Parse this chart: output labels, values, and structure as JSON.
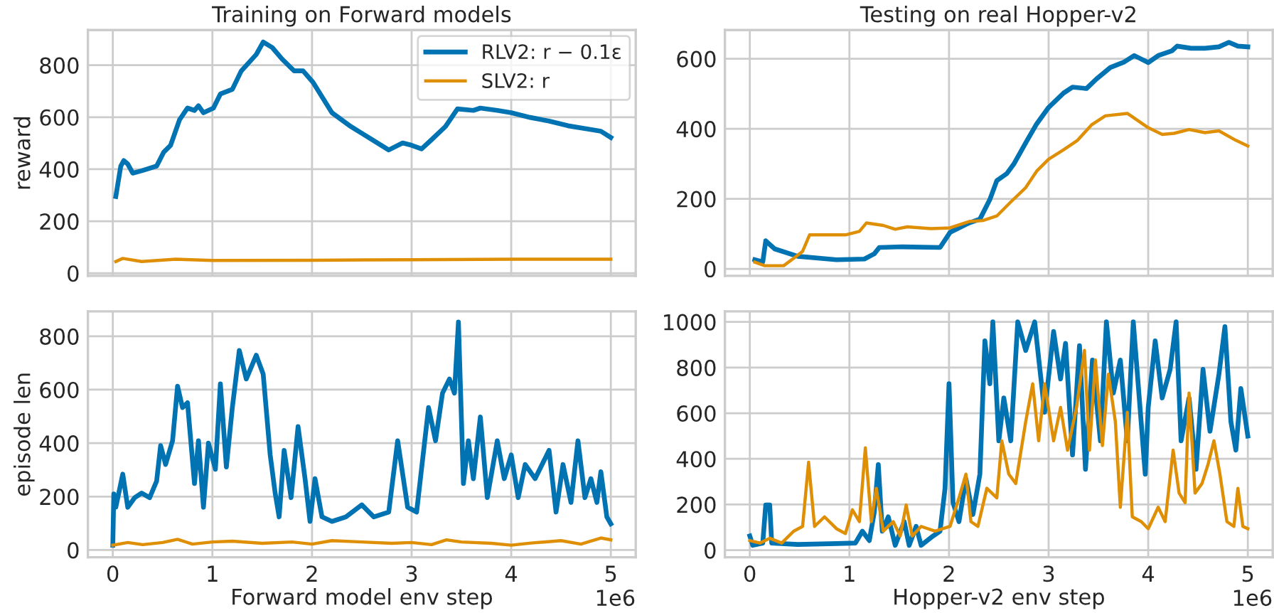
{
  "chart_data": [
    {
      "type": "line",
      "title": "Training on Forward models",
      "ylabel": "reward",
      "xlim": [
        -0.25,
        5.25
      ],
      "xticks": [
        0,
        1,
        2,
        3,
        4,
        5
      ],
      "ylim": [
        -10,
        935
      ],
      "yticks": [
        0,
        200,
        400,
        600,
        800
      ],
      "grid": true,
      "legend": "top right",
      "tick_labels": "y",
      "series": [
        {
          "name": "RLV2: r − 0.1ε",
          "color": "#0173b2",
          "x": [
            0.03,
            0.08,
            0.11,
            0.15,
            0.2,
            0.29,
            0.44,
            0.51,
            0.58,
            0.67,
            0.75,
            0.82,
            0.86,
            0.91,
            1.01,
            1.08,
            1.2,
            1.29,
            1.44,
            1.51,
            1.6,
            1.7,
            1.82,
            1.91,
            2.01,
            2.2,
            2.39,
            2.58,
            2.77,
            2.91,
            3.0,
            3.1,
            3.19,
            3.34,
            3.46,
            3.62,
            3.69,
            3.86,
            4.0,
            4.19,
            4.38,
            4.57,
            4.76,
            4.9,
            5.0
          ],
          "values": [
            295,
            412,
            433,
            420,
            385,
            394,
            412,
            465,
            492,
            590,
            635,
            626,
            644,
            617,
            635,
            689,
            707,
            778,
            841,
            889,
            868,
            823,
            778,
            778,
            734,
            617,
            564,
            519,
            474,
            501,
            492,
            478,
            510,
            564,
            632,
            626,
            635,
            626,
            617,
            599,
            585,
            567,
            555,
            546,
            522
          ]
        },
        {
          "name": "SLV2: r",
          "color": "#de8f05",
          "x": [
            0.03,
            0.1,
            0.29,
            0.63,
            1.0,
            2.0,
            3.0,
            4.0,
            5.0
          ],
          "values": [
            45,
            57,
            45,
            54,
            49,
            50,
            52,
            54,
            54
          ]
        }
      ]
    },
    {
      "type": "line",
      "title": "Testing on real Hopper-v2",
      "xlim": [
        -0.25,
        5.25
      ],
      "xticks": [
        0,
        1,
        2,
        3,
        4,
        5
      ],
      "ylim": [
        -20,
        682
      ],
      "yticks": [
        0,
        200,
        400,
        600
      ],
      "grid": true,
      "tick_labels": "y",
      "series": [
        {
          "color": "#0173b2",
          "x": [
            0.05,
            0.13,
            0.16,
            0.25,
            0.48,
            0.87,
            1.15,
            1.25,
            1.3,
            1.53,
            1.91,
            2.01,
            2.2,
            2.31,
            2.41,
            2.48,
            2.58,
            2.65,
            2.77,
            2.88,
            3.0,
            3.15,
            3.24,
            3.38,
            3.48,
            3.62,
            3.76,
            3.86,
            3.91,
            4.0,
            4.1,
            4.24,
            4.29,
            4.43,
            4.57,
            4.71,
            4.81,
            4.9,
            5.0
          ],
          "values": [
            26,
            20,
            80,
            57,
            36,
            26,
            28,
            43,
            61,
            63,
            61,
            104,
            131,
            142,
            198,
            252,
            272,
            299,
            360,
            414,
            461,
            502,
            519,
            515,
            542,
            575,
            591,
            609,
            602,
            589,
            609,
            623,
            636,
            630,
            630,
            634,
            647,
            636,
            634
          ]
        },
        {
          "color": "#de8f05",
          "x": [
            0.05,
            0.15,
            0.34,
            0.44,
            0.53,
            0.6,
            0.77,
            0.96,
            1.1,
            1.17,
            1.34,
            1.46,
            1.58,
            1.82,
            2.01,
            2.2,
            2.34,
            2.48,
            2.62,
            2.77,
            2.88,
            3.0,
            3.15,
            3.29,
            3.43,
            3.57,
            3.79,
            4.0,
            4.14,
            4.26,
            4.41,
            4.57,
            4.71,
            4.88,
            5.0
          ],
          "values": [
            19,
            9,
            9,
            30,
            50,
            97,
            97,
            97,
            107,
            131,
            124,
            113,
            120,
            115,
            117,
            135,
            138,
            151,
            191,
            232,
            279,
            313,
            340,
            367,
            411,
            437,
            444,
            403,
            384,
            387,
            398,
            389,
            394,
            367,
            351
          ]
        }
      ]
    },
    {
      "type": "line",
      "xlabel": "Forward model env step",
      "ylabel": "episode len",
      "xlim": [
        -0.25,
        5.25
      ],
      "xticks": [
        0,
        1,
        2,
        3,
        4,
        5
      ],
      "ylim": [
        -27,
        893
      ],
      "yticks": [
        0,
        200,
        400,
        600,
        800
      ],
      "grid": true,
      "annotations": [
        "1e6"
      ],
      "series": [
        {
          "color": "#0173b2",
          "x": [
            0,
            0.01,
            0.03,
            0.1,
            0.15,
            0.22,
            0.29,
            0.37,
            0.44,
            0.48,
            0.53,
            0.6,
            0.65,
            0.7,
            0.75,
            0.82,
            0.86,
            0.91,
            0.96,
            1.03,
            1.08,
            1.14,
            1.2,
            1.27,
            1.34,
            1.44,
            1.51,
            1.58,
            1.63,
            1.67,
            1.72,
            1.79,
            1.86,
            1.93,
            1.98,
            2.03,
            2.1,
            2.2,
            2.34,
            2.5,
            2.62,
            2.77,
            2.86,
            2.96,
            3.05,
            3.17,
            3.24,
            3.31,
            3.38,
            3.43,
            3.47,
            3.52,
            3.57,
            3.62,
            3.69,
            3.76,
            3.86,
            3.93,
            4.0,
            4.07,
            4.14,
            4.24,
            4.38,
            4.45,
            4.52,
            4.6,
            4.67,
            4.74,
            4.8,
            4.86,
            4.9,
            4.96,
            5.0
          ],
          "values": [
            18,
            210,
            160,
            284,
            160,
            196,
            213,
            196,
            258,
            391,
            320,
            409,
            613,
            533,
            551,
            249,
            409,
            160,
            400,
            302,
            622,
            311,
            533,
            747,
            640,
            729,
            658,
            356,
            213,
            124,
            373,
            196,
            462,
            267,
            107,
            267,
            124,
            107,
            124,
            169,
            124,
            142,
            409,
            160,
            142,
            533,
            409,
            587,
            640,
            587,
            853,
            249,
            409,
            267,
            498,
            196,
            409,
            267,
            356,
            196,
            320,
            267,
            373,
            142,
            320,
            178,
            409,
            196,
            267,
            178,
            293,
            124,
            98
          ]
        },
        {
          "color": "#de8f05",
          "x": [
            0,
            0.15,
            0.3,
            0.5,
            0.65,
            0.8,
            1.0,
            1.2,
            1.5,
            1.8,
            2.0,
            2.2,
            2.5,
            2.8,
            3.0,
            3.2,
            3.35,
            3.5,
            3.8,
            4.0,
            4.2,
            4.5,
            4.7,
            4.9,
            5.0
          ],
          "values": [
            18,
            28,
            20,
            28,
            40,
            22,
            30,
            33,
            25,
            30,
            22,
            35,
            30,
            25,
            28,
            20,
            38,
            30,
            25,
            18,
            26,
            35,
            22,
            45,
            38
          ]
        }
      ]
    },
    {
      "type": "line",
      "xlabel": "Hopper-v2 env step",
      "xlim": [
        -0.25,
        5.25
      ],
      "xticks": [
        0,
        1,
        2,
        3,
        4,
        5
      ],
      "ylim": [
        -31,
        1046
      ],
      "yticks": [
        0,
        200,
        400,
        600,
        800,
        1000
      ],
      "grid": true,
      "annotations": [
        "1e6"
      ],
      "series": [
        {
          "color": "#0173b2",
          "x": [
            0,
            0.03,
            0.13,
            0.16,
            0.2,
            0.22,
            0.48,
            0.87,
            1.06,
            1.13,
            1.2,
            1.25,
            1.29,
            1.33,
            1.39,
            1.46,
            1.55,
            1.6,
            1.67,
            1.72,
            1.84,
            1.91,
            1.96,
            2.0,
            2.04,
            2.1,
            2.17,
            2.24,
            2.31,
            2.36,
            2.41,
            2.44,
            2.5,
            2.55,
            2.62,
            2.69,
            2.77,
            2.86,
            2.96,
            3.05,
            3.12,
            3.17,
            3.24,
            3.31,
            3.37,
            3.44,
            3.52,
            3.58,
            3.65,
            3.72,
            3.79,
            3.85,
            3.91,
            3.97,
            4.0,
            4.07,
            4.14,
            4.22,
            4.28,
            4.33,
            4.41,
            4.48,
            4.55,
            4.62,
            4.71,
            4.77,
            4.83,
            4.88,
            4.93,
            5.0
          ],
          "values": [
            62,
            21,
            31,
            198,
            198,
            31,
            25,
            29,
            31,
            83,
            42,
            167,
            375,
            83,
            146,
            21,
            125,
            21,
            104,
            21,
            62,
            83,
            271,
            729,
            208,
            125,
            312,
            156,
            333,
            917,
            729,
            1000,
            479,
            667,
            479,
            1000,
            875,
            1000,
            604,
            958,
            750,
            906,
            417,
            896,
            354,
            833,
            479,
            1000,
            688,
            833,
            479,
            1000,
            667,
            333,
            625,
            917,
            667,
            792,
            1000,
            479,
            667,
            354,
            792,
            521,
            771,
            979,
            563,
            438,
            708,
            500
          ]
        },
        {
          "color": "#de8f05",
          "x": [
            0,
            0.1,
            0.2,
            0.32,
            0.44,
            0.53,
            0.59,
            0.65,
            0.75,
            0.87,
            0.96,
            1.03,
            1.1,
            1.16,
            1.22,
            1.27,
            1.34,
            1.44,
            1.51,
            1.57,
            1.63,
            1.72,
            1.86,
            2.01,
            2.1,
            2.17,
            2.22,
            2.29,
            2.38,
            2.48,
            2.53,
            2.6,
            2.67,
            2.77,
            2.84,
            2.9,
            2.96,
            3.05,
            3.12,
            3.19,
            3.28,
            3.36,
            3.41,
            3.47,
            3.54,
            3.6,
            3.67,
            3.72,
            3.79,
            3.84,
            3.93,
            4.0,
            4.1,
            4.17,
            4.25,
            4.31,
            4.37,
            4.41,
            4.47,
            4.54,
            4.6,
            4.66,
            4.72,
            4.79,
            4.86,
            4.9,
            4.95,
            5.0
          ],
          "values": [
            42,
            31,
            52,
            31,
            83,
            104,
            385,
            104,
            146,
            94,
            73,
            177,
            125,
            448,
            125,
            271,
            83,
            125,
            62,
            198,
            62,
            104,
            83,
            104,
            229,
            333,
            125,
            104,
            271,
            229,
            479,
            333,
            292,
            563,
            729,
            479,
            729,
            479,
            625,
            438,
            625,
            875,
            438,
            833,
            458,
            771,
            563,
            188,
            604,
            146,
            125,
            94,
            188,
            125,
            438,
            250,
            208,
            688,
            250,
            292,
            375,
            479,
            333,
            125,
            104,
            271,
            104,
            94
          ]
        }
      ]
    }
  ]
}
